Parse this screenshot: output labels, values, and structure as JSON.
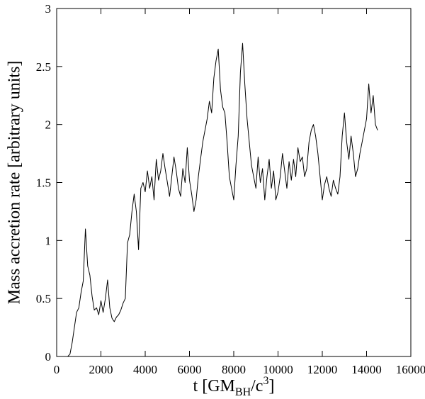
{
  "chart_data": {
    "type": "line",
    "title": "",
    "xlabel": {
      "main": "t [GM",
      "sub": "BH",
      "mid": "/c",
      "sup": "3",
      "end": "]"
    },
    "ylabel": "Mass accretion rate [arbitrary units]",
    "xlim": [
      0,
      16000
    ],
    "ylim": [
      0,
      3
    ],
    "xticks": [
      0,
      2000,
      4000,
      6000,
      8000,
      10000,
      12000,
      14000,
      16000
    ],
    "yticks": [
      0,
      0.5,
      1,
      1.5,
      2,
      2.5,
      3
    ],
    "xtick_labels": [
      "0",
      "2000",
      "4000",
      "6000",
      "8000",
      "10000",
      "12000",
      "14000",
      "16000"
    ],
    "ytick_labels": [
      "0",
      "0.5",
      "1",
      "1.5",
      "2",
      "2.5",
      "3"
    ],
    "grid": false,
    "legend": "none",
    "series": [
      {
        "color": "#000000",
        "x": [
          500,
          600,
          700,
          800,
          900,
          1000,
          1100,
          1200,
          1300,
          1400,
          1500,
          1600,
          1700,
          1800,
          1900,
          2000,
          2100,
          2200,
          2300,
          2400,
          2500,
          2600,
          2700,
          2800,
          2900,
          3000,
          3100,
          3200,
          3300,
          3400,
          3500,
          3600,
          3700,
          3800,
          3900,
          4000,
          4100,
          4200,
          4300,
          4400,
          4500,
          4600,
          4700,
          4800,
          4900,
          5000,
          5100,
          5200,
          5300,
          5400,
          5500,
          5600,
          5700,
          5800,
          5900,
          6000,
          6100,
          6200,
          6300,
          6400,
          6500,
          6600,
          6700,
          6800,
          6900,
          7000,
          7100,
          7200,
          7300,
          7400,
          7500,
          7600,
          7700,
          7800,
          7900,
          8000,
          8100,
          8200,
          8300,
          8400,
          8500,
          8600,
          8700,
          8800,
          8900,
          9000,
          9100,
          9200,
          9300,
          9400,
          9500,
          9600,
          9700,
          9800,
          9900,
          10000,
          10100,
          10200,
          10300,
          10400,
          10500,
          10600,
          10700,
          10800,
          10900,
          11000,
          11100,
          11200,
          11300,
          11400,
          11500,
          11600,
          11700,
          11800,
          11900,
          12000,
          12100,
          12200,
          12300,
          12400,
          12500,
          12600,
          12700,
          12800,
          12900,
          13000,
          13100,
          13200,
          13300,
          13400,
          13500,
          13600,
          13700,
          13800,
          13900,
          14000,
          14100,
          14200,
          14300,
          14400,
          14500
        ],
        "y": [
          0.0,
          0.02,
          0.12,
          0.25,
          0.38,
          0.42,
          0.55,
          0.65,
          1.1,
          0.78,
          0.7,
          0.52,
          0.4,
          0.42,
          0.36,
          0.48,
          0.38,
          0.5,
          0.66,
          0.42,
          0.33,
          0.3,
          0.34,
          0.36,
          0.4,
          0.46,
          0.5,
          0.98,
          1.05,
          1.25,
          1.4,
          1.25,
          0.92,
          1.45,
          1.5,
          1.42,
          1.6,
          1.45,
          1.55,
          1.35,
          1.7,
          1.52,
          1.6,
          1.75,
          1.62,
          1.5,
          1.38,
          1.55,
          1.72,
          1.6,
          1.45,
          1.38,
          1.62,
          1.5,
          1.8,
          1.52,
          1.4,
          1.25,
          1.35,
          1.55,
          1.7,
          1.85,
          1.95,
          2.05,
          2.2,
          2.1,
          2.4,
          2.55,
          2.65,
          2.3,
          2.15,
          2.1,
          1.85,
          1.55,
          1.45,
          1.35,
          1.65,
          1.9,
          2.45,
          2.7,
          2.35,
          2.05,
          1.85,
          1.65,
          1.55,
          1.45,
          1.72,
          1.5,
          1.62,
          1.35,
          1.55,
          1.7,
          1.45,
          1.6,
          1.35,
          1.42,
          1.55,
          1.75,
          1.6,
          1.45,
          1.68,
          1.52,
          1.7,
          1.55,
          1.8,
          1.68,
          1.72,
          1.55,
          1.62,
          1.85,
          1.95,
          2.0,
          1.9,
          1.75,
          1.55,
          1.35,
          1.48,
          1.55,
          1.45,
          1.38,
          1.52,
          1.45,
          1.4,
          1.55,
          1.9,
          2.1,
          1.85,
          1.7,
          1.9,
          1.75,
          1.55,
          1.62,
          1.75,
          1.85,
          1.95,
          2.05,
          2.35,
          2.1,
          2.25,
          2.0,
          1.95
        ]
      }
    ]
  }
}
